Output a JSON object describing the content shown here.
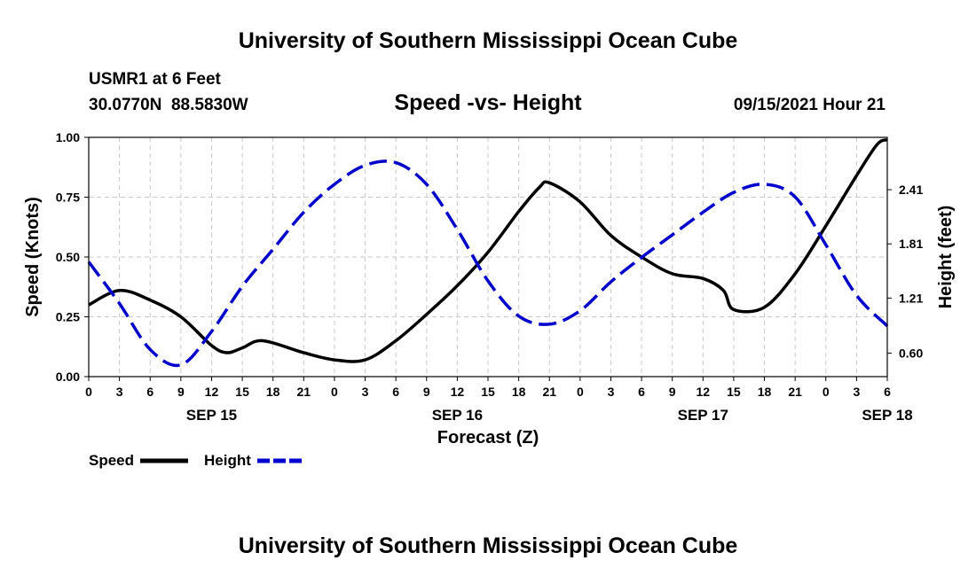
{
  "chart_data": {
    "type": "line",
    "title": "University of Southern Mississippi Ocean Cube",
    "footer_title": "University of Southern Mississippi Ocean Cube",
    "station": "USMR1 at 6 Feet",
    "coords": "30.0770N  88.5830W",
    "subtitle": "Speed -vs- Height",
    "timestamp": "09/15/2021 Hour 21",
    "xlabel": "Forecast (Z)",
    "ylabel_left": "Speed (Knots)",
    "ylabel_right": "Height (feet)",
    "x_range": [
      0,
      78
    ],
    "x_ticks": [
      0,
      3,
      6,
      9,
      12,
      15,
      18,
      21,
      24,
      27,
      30,
      33,
      36,
      39,
      42,
      45,
      48,
      51,
      54,
      57,
      60,
      63,
      66,
      69,
      72,
      75,
      78
    ],
    "x_tick_labels": [
      "0",
      "3",
      "6",
      "9",
      "12",
      "15",
      "18",
      "21",
      "0",
      "3",
      "6",
      "9",
      "12",
      "15",
      "18",
      "21",
      "0",
      "3",
      "6",
      "9",
      "12",
      "15",
      "18",
      "21",
      "0",
      "3",
      "6"
    ],
    "date_labels": [
      {
        "x": 12,
        "label": "SEP 15"
      },
      {
        "x": 36,
        "label": "SEP 16"
      },
      {
        "x": 60,
        "label": "SEP 17"
      },
      {
        "x": 78,
        "label": "SEP 18"
      }
    ],
    "y_left": {
      "min": 0,
      "max": 1.0,
      "ticks": [
        0,
        0.25,
        0.5,
        0.75,
        1.0
      ],
      "tick_labels": [
        "0.00",
        "0.25",
        "0.50",
        "0.75",
        "1.00"
      ]
    },
    "y_right": {
      "min": 0.34,
      "max": 2.99,
      "ticks": [
        0.6,
        1.21,
        1.81,
        2.41
      ],
      "tick_labels": [
        "0.60",
        "1.21",
        "1.81",
        "2.41"
      ]
    },
    "grid": true,
    "legend": [
      {
        "name": "Speed",
        "color": "#000000",
        "style": "solid"
      },
      {
        "name": "Height",
        "color": "#0000cc",
        "style": "dashed"
      }
    ],
    "series": [
      {
        "name": "Speed",
        "axis": "left",
        "color": "#000000",
        "style": "solid",
        "x": [
          0,
          3,
          6,
          9,
          12,
          13.5,
          15,
          17,
          21,
          24,
          27,
          30,
          33,
          36,
          39,
          42,
          44,
          45,
          48,
          51,
          54,
          57,
          60,
          62,
          63,
          66,
          69,
          72,
          75,
          77,
          78
        ],
        "y": [
          0.3,
          0.36,
          0.32,
          0.25,
          0.13,
          0.1,
          0.12,
          0.15,
          0.1,
          0.07,
          0.07,
          0.15,
          0.26,
          0.38,
          0.52,
          0.69,
          0.79,
          0.81,
          0.73,
          0.59,
          0.5,
          0.43,
          0.41,
          0.36,
          0.28,
          0.29,
          0.43,
          0.63,
          0.84,
          0.97,
          0.99
        ]
      },
      {
        "name": "Height",
        "axis": "right",
        "color": "#0000cc",
        "style": "dashed",
        "x": [
          0,
          3,
          6,
          9,
          12,
          15,
          18,
          21,
          24,
          27,
          30,
          33,
          36,
          39,
          42,
          45,
          48,
          51,
          54,
          57,
          60,
          63,
          66,
          69,
          72,
          75,
          78
        ],
        "y": [
          1.61,
          1.15,
          0.64,
          0.47,
          0.84,
          1.34,
          1.75,
          2.16,
          2.47,
          2.68,
          2.71,
          2.47,
          1.97,
          1.4,
          1.01,
          0.92,
          1.07,
          1.39,
          1.66,
          1.91,
          2.16,
          2.38,
          2.47,
          2.33,
          1.8,
          1.24,
          0.9
        ]
      }
    ]
  }
}
